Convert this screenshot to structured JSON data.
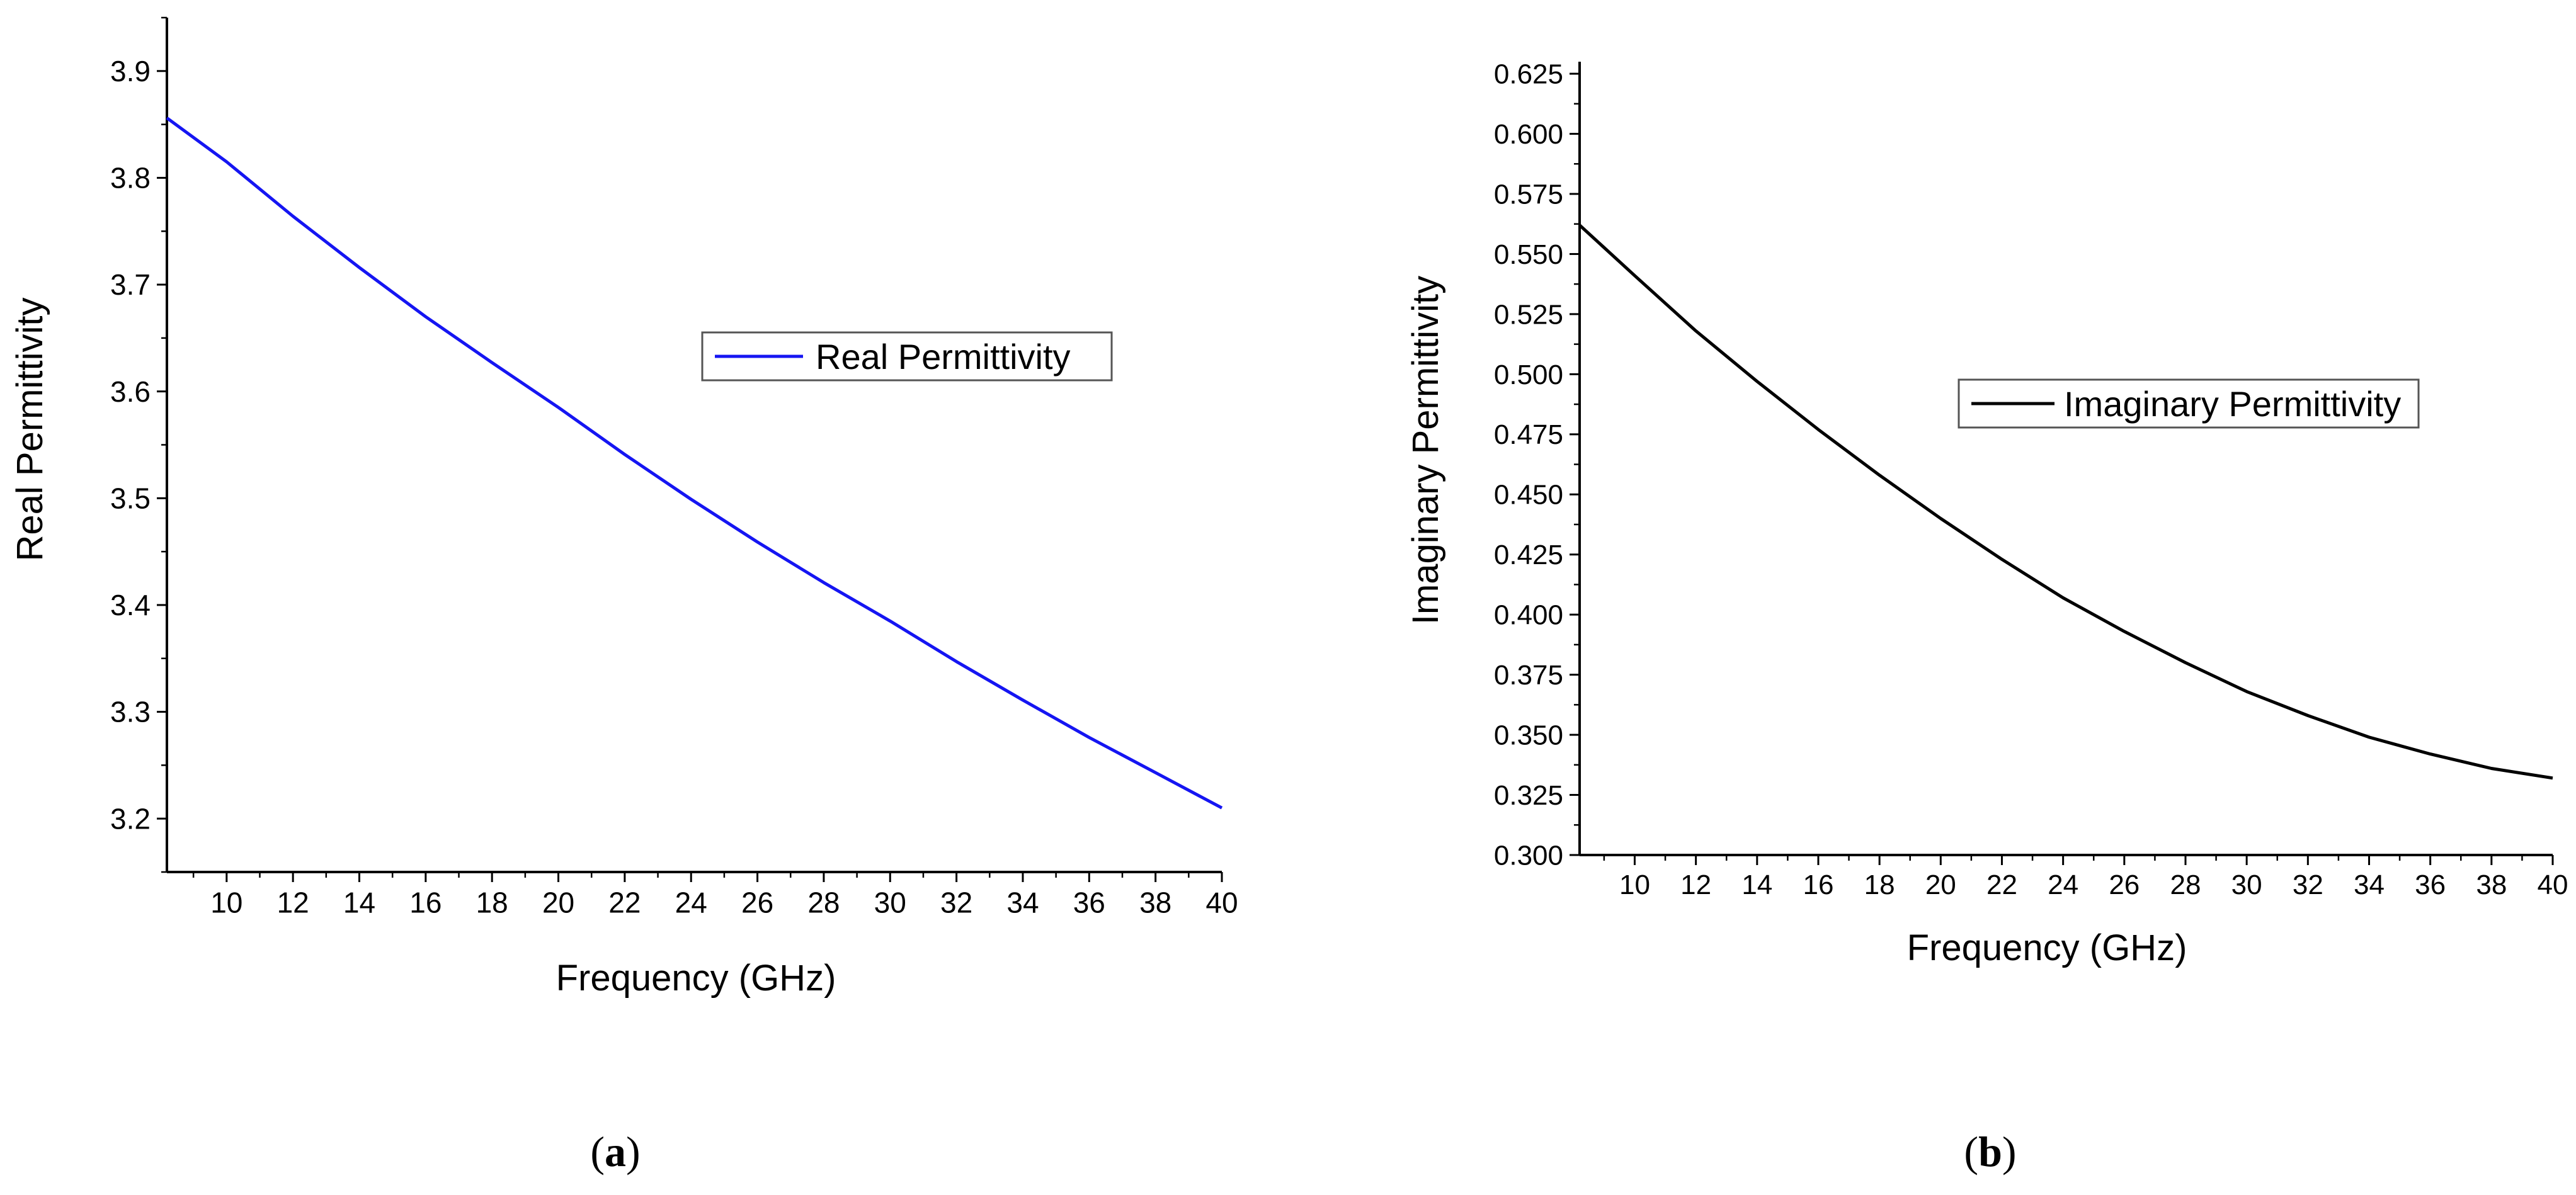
{
  "chart_data": [
    {
      "type": "line",
      "panel_label": "a",
      "title": "",
      "xlabel": "Frequency (GHz)",
      "ylabel": "Real Permittivity",
      "xlim": [
        8.2,
        40
      ],
      "ylim": [
        3.15,
        3.95
      ],
      "x_ticks": [
        10,
        12,
        14,
        16,
        18,
        20,
        22,
        24,
        26,
        28,
        30,
        32,
        34,
        36,
        38,
        40
      ],
      "x_tick_labels": [
        "10",
        "12",
        "14",
        "16",
        "18",
        "20",
        "22",
        "24",
        "26",
        "28",
        "30",
        "32",
        "34",
        "36",
        "38",
        "40"
      ],
      "y_ticks": [
        3.2,
        3.3,
        3.4,
        3.5,
        3.6,
        3.7,
        3.8,
        3.9
      ],
      "y_tick_labels": [
        "3.2",
        "3.3",
        "3.4",
        "3.5",
        "3.6",
        "3.7",
        "3.8",
        "3.9"
      ],
      "legend": {
        "position": "center-right",
        "entries": [
          "Real Permittivity"
        ]
      },
      "series": [
        {
          "name": "Real Permittivity",
          "color": "#1515f2",
          "x": [
            8.2,
            10,
            12,
            14,
            16,
            18,
            20,
            22,
            24,
            26,
            28,
            30,
            32,
            34,
            36,
            38,
            40
          ],
          "values": [
            3.856,
            3.815,
            3.764,
            3.716,
            3.67,
            3.627,
            3.585,
            3.541,
            3.499,
            3.459,
            3.421,
            3.385,
            3.347,
            3.311,
            3.276,
            3.243,
            3.21
          ]
        }
      ]
    },
    {
      "type": "line",
      "panel_label": "b",
      "title": "",
      "xlabel": "Frequency (GHz)",
      "ylabel": "Imaginary Permittivity",
      "xlim": [
        8.2,
        40
      ],
      "ylim": [
        0.3,
        0.63
      ],
      "x_ticks": [
        10,
        12,
        14,
        16,
        18,
        20,
        22,
        24,
        26,
        28,
        30,
        32,
        34,
        36,
        38,
        40
      ],
      "x_tick_labels": [
        "10",
        "12",
        "14",
        "16",
        "18",
        "20",
        "22",
        "24",
        "26",
        "28",
        "30",
        "32",
        "34",
        "36",
        "38",
        "40"
      ],
      "y_ticks": [
        0.3,
        0.325,
        0.35,
        0.375,
        0.4,
        0.425,
        0.45,
        0.475,
        0.5,
        0.525,
        0.55,
        0.575,
        0.6,
        0.625
      ],
      "y_tick_labels": [
        "0.300",
        "0.325",
        "0.350",
        "0.375",
        "0.400",
        "0.425",
        "0.450",
        "0.475",
        "0.500",
        "0.525",
        "0.550",
        "0.575",
        "0.600",
        "0.625"
      ],
      "legend": {
        "position": "center-right",
        "entries": [
          "Imaginary Permittivity"
        ]
      },
      "series": [
        {
          "name": "Imaginary Permittivity",
          "color": "#000000",
          "x": [
            8.2,
            10,
            12,
            14,
            16,
            18,
            20,
            22,
            24,
            26,
            28,
            30,
            32,
            34,
            36,
            38,
            40
          ],
          "values": [
            0.562,
            0.541,
            0.518,
            0.497,
            0.477,
            0.458,
            0.44,
            0.423,
            0.407,
            0.393,
            0.38,
            0.368,
            0.358,
            0.349,
            0.342,
            0.336,
            0.332
          ]
        }
      ]
    }
  ]
}
